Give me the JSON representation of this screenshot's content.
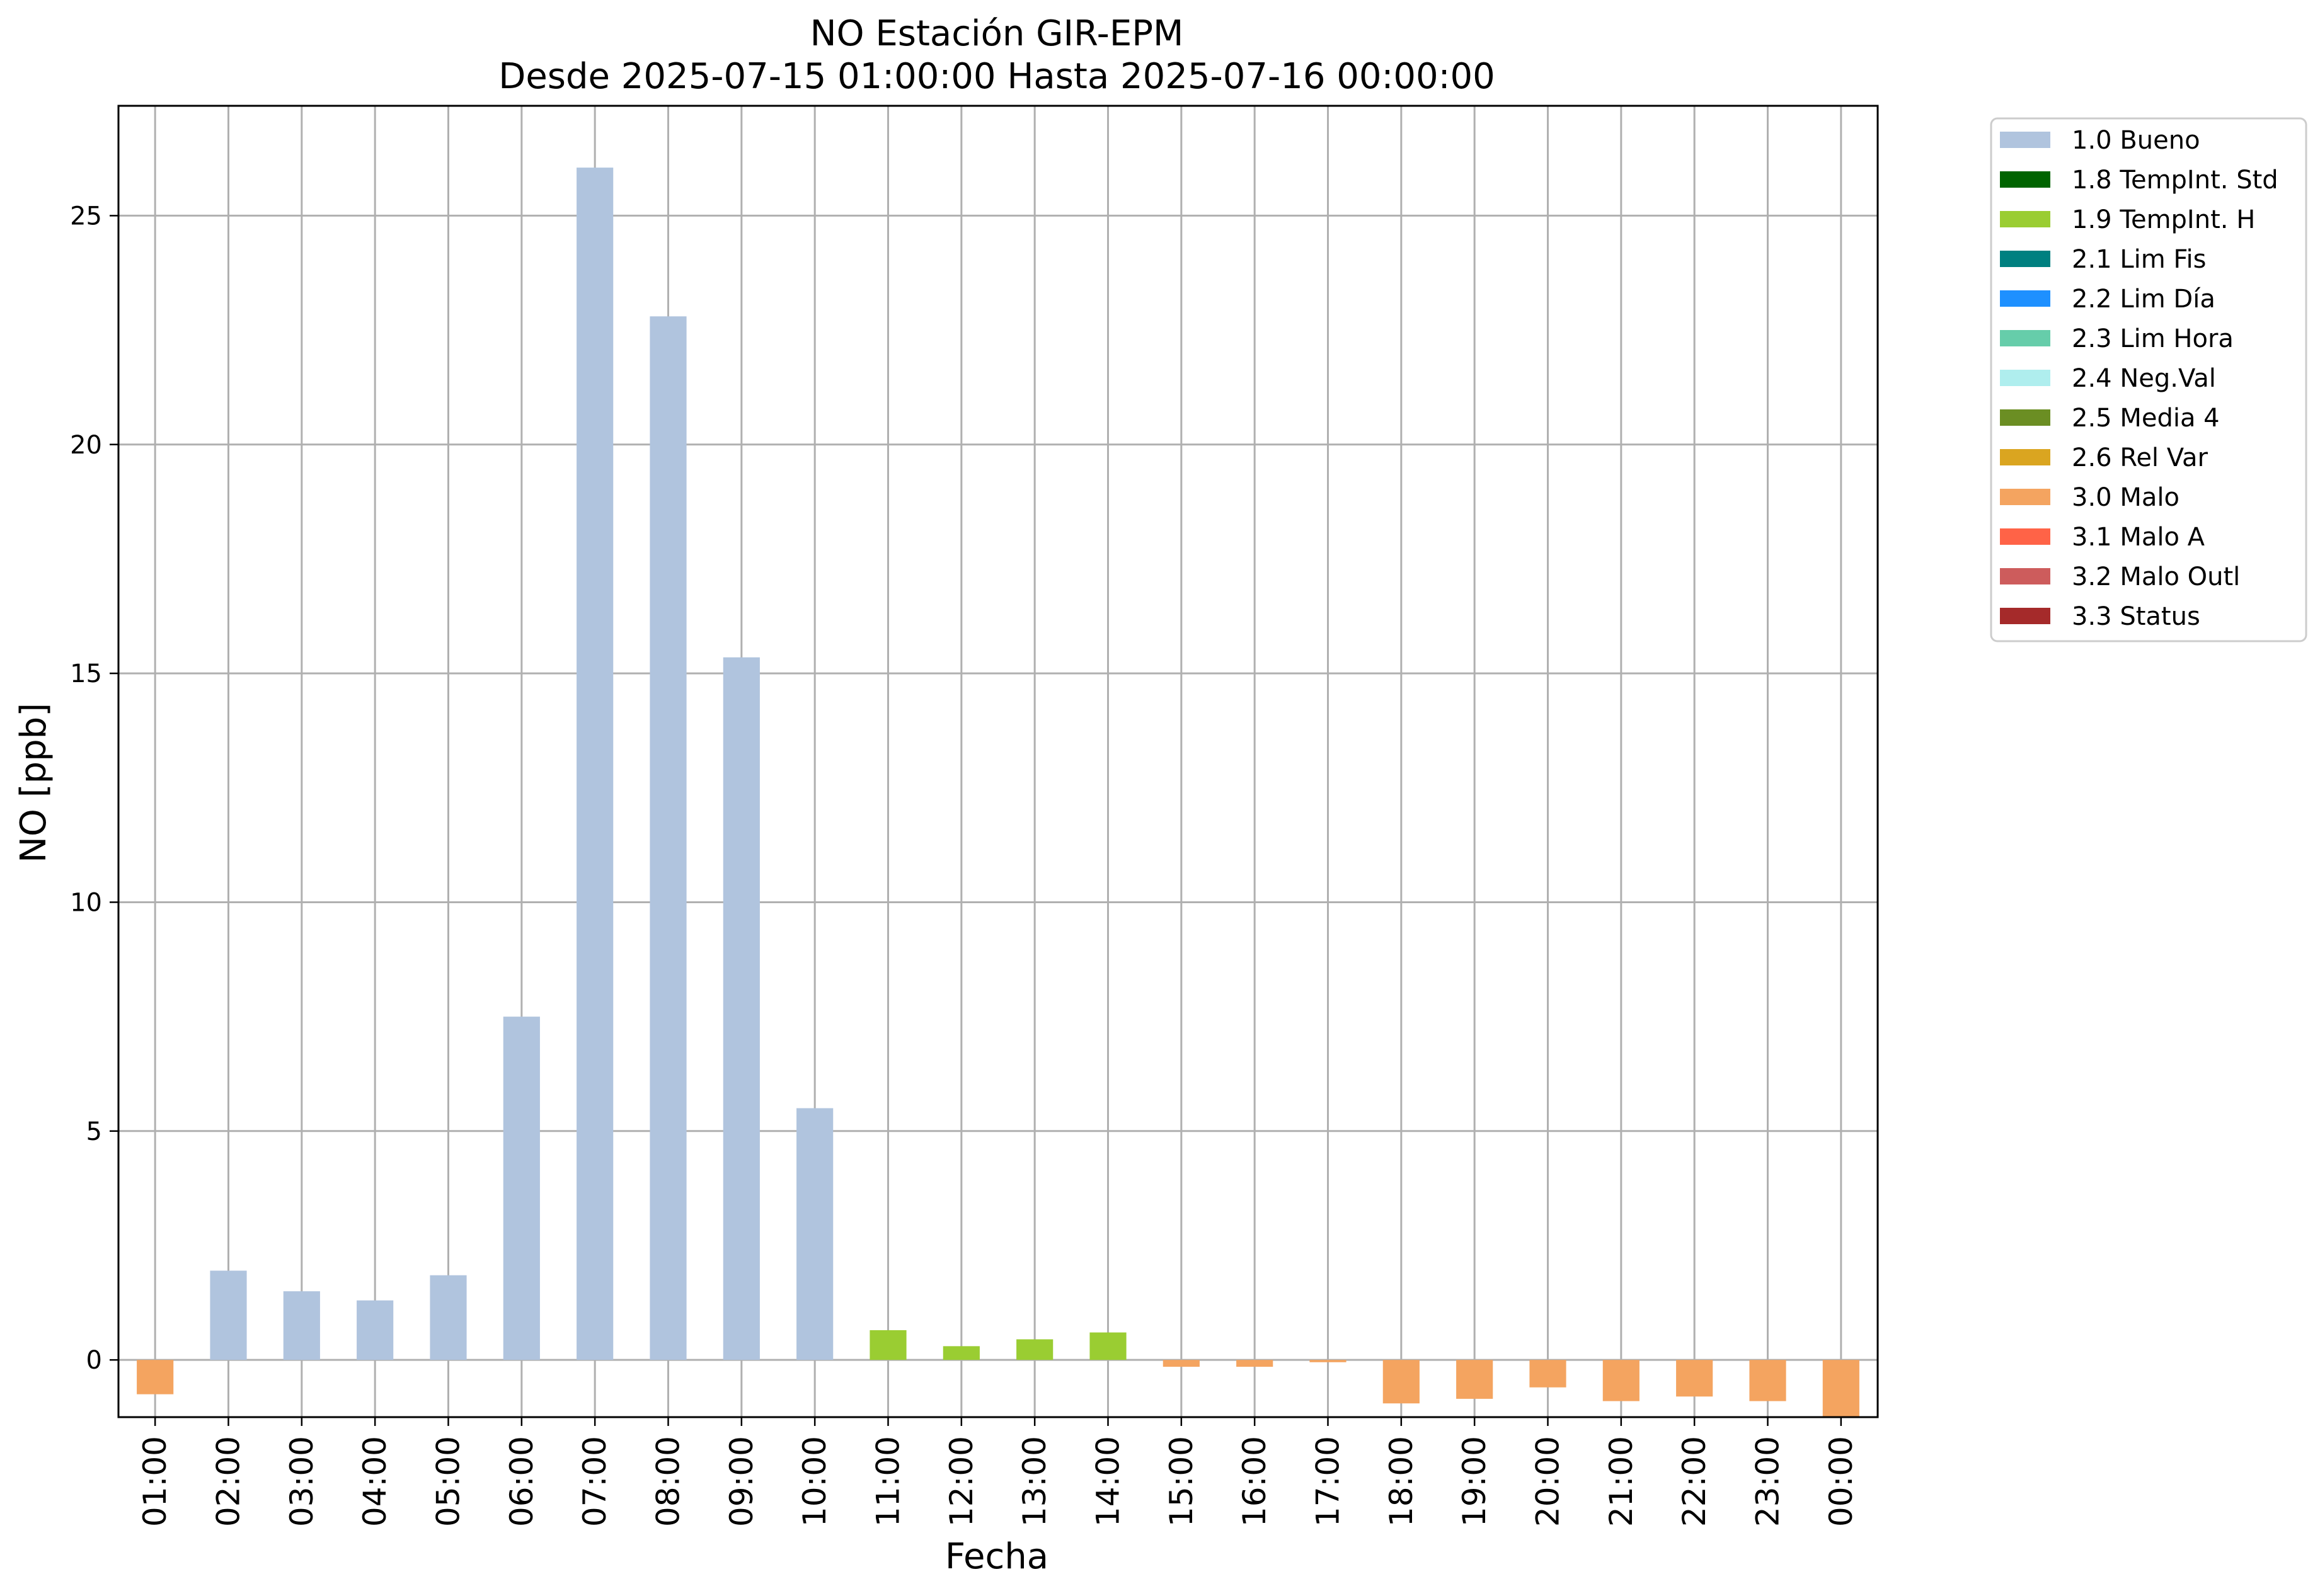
{
  "chart_data": {
    "type": "bar",
    "title": "NO Estación GIR-EPM",
    "subtitle": "Desde 2025-07-15 01:00:00 Hasta 2025-07-16 00:00:00",
    "xlabel": "Fecha",
    "ylabel": "NO [ppb]",
    "ylim": [
      -1.25,
      27.4
    ],
    "yticks": [
      0,
      5,
      10,
      15,
      20,
      25
    ],
    "grid": true,
    "legend_position": "outside-top-right",
    "categories": [
      "01:00",
      "02:00",
      "03:00",
      "04:00",
      "05:00",
      "06:00",
      "07:00",
      "08:00",
      "09:00",
      "10:00",
      "11:00",
      "12:00",
      "13:00",
      "14:00",
      "15:00",
      "16:00",
      "17:00",
      "18:00",
      "19:00",
      "20:00",
      "21:00",
      "22:00",
      "23:00",
      "00:00"
    ],
    "values": [
      -0.75,
      1.95,
      1.5,
      1.3,
      1.85,
      7.5,
      26.05,
      22.8,
      15.35,
      5.5,
      0.65,
      0.3,
      0.45,
      0.6,
      -0.15,
      -0.15,
      -0.05,
      -0.95,
      -0.85,
      -0.6,
      -0.9,
      -0.8,
      -0.9,
      -1.25
    ],
    "flags": [
      "3.0 Malo",
      "1.0 Bueno",
      "1.0 Bueno",
      "1.0 Bueno",
      "1.0 Bueno",
      "1.0 Bueno",
      "1.0 Bueno",
      "1.0 Bueno",
      "1.0 Bueno",
      "1.0 Bueno",
      "1.9 TempInt. H",
      "1.9 TempInt. H",
      "1.9 TempInt. H",
      "1.9 TempInt. H",
      "3.0 Malo",
      "3.0 Malo",
      "3.0 Malo",
      "3.0 Malo",
      "3.0 Malo",
      "3.0 Malo",
      "3.0 Malo",
      "3.0 Malo",
      "3.0 Malo",
      "3.0 Malo"
    ],
    "legend": [
      {
        "label": "1.0 Bueno",
        "color": "#b0c4de"
      },
      {
        "label": "1.8 TempInt. Std",
        "color": "#006400"
      },
      {
        "label": "1.9 TempInt. H",
        "color": "#9acd32"
      },
      {
        "label": "2.1 Lim Fis",
        "color": "#008080"
      },
      {
        "label": "2.2 Lim Día",
        "color": "#1e90ff"
      },
      {
        "label": "2.3 Lim Hora",
        "color": "#66cdaa"
      },
      {
        "label": "2.4 Neg.Val",
        "color": "#afeeee"
      },
      {
        "label": "2.5 Media 4",
        "color": "#6b8e23"
      },
      {
        "label": "2.6 Rel Var",
        "color": "#daa520"
      },
      {
        "label": "3.0 Malo",
        "color": "#f4a460"
      },
      {
        "label": "3.1 Malo A",
        "color": "#ff6347"
      },
      {
        "label": "3.2 Malo Outl",
        "color": "#cd5c5c"
      },
      {
        "label": "3.3 Status",
        "color": "#a52a2a"
      }
    ]
  }
}
